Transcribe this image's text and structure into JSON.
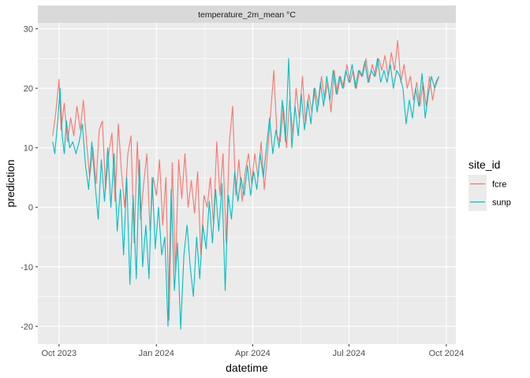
{
  "chart_data": {
    "type": "line",
    "facet_label": "temperature_2m_mean °C",
    "xlabel": "datetime",
    "ylabel": "prediction",
    "legend_title": "site_id",
    "legend_position": "right",
    "grid": true,
    "x_range": [
      "2023-09-11",
      "2024-10-10"
    ],
    "ylim": [
      -23,
      31
    ],
    "x_ticks": [
      {
        "date": "2023-10-01",
        "label": "Oct 2023"
      },
      {
        "date": "2024-01-01",
        "label": "Jan 2024"
      },
      {
        "date": "2024-04-01",
        "label": "Apr 2024"
      },
      {
        "date": "2024-07-01",
        "label": "Jul 2024"
      },
      {
        "date": "2024-10-01",
        "label": "Oct 2024"
      }
    ],
    "y_ticks": [
      -20,
      -10,
      0,
      10,
      20,
      30
    ],
    "series": [
      {
        "name": "fcre",
        "color": "#F8766D",
        "points": [
          [
            "2023-09-25",
            12
          ],
          [
            "2023-09-28",
            16
          ],
          [
            "2023-10-01",
            21.5
          ],
          [
            "2023-10-03",
            13
          ],
          [
            "2023-10-06",
            17.5
          ],
          [
            "2023-10-09",
            11
          ],
          [
            "2023-10-12",
            15
          ],
          [
            "2023-10-15",
            12
          ],
          [
            "2023-10-18",
            17
          ],
          [
            "2023-10-21",
            13
          ],
          [
            "2023-10-24",
            18
          ],
          [
            "2023-10-27",
            11
          ],
          [
            "2023-10-30",
            5
          ],
          [
            "2023-11-02",
            10
          ],
          [
            "2023-11-05",
            4
          ],
          [
            "2023-11-08",
            13
          ],
          [
            "2023-11-11",
            14.5
          ],
          [
            "2023-11-14",
            3
          ],
          [
            "2023-11-17",
            9
          ],
          [
            "2023-11-20",
            12.5
          ],
          [
            "2023-11-23",
            1
          ],
          [
            "2023-11-26",
            14
          ],
          [
            "2023-11-29",
            6
          ],
          [
            "2023-12-02",
            0
          ],
          [
            "2023-12-05",
            9
          ],
          [
            "2023-12-08",
            12
          ],
          [
            "2023-12-11",
            -6
          ],
          [
            "2023-12-14",
            11
          ],
          [
            "2023-12-17",
            -2
          ],
          [
            "2023-12-20",
            4
          ],
          [
            "2023-12-23",
            9
          ],
          [
            "2023-12-26",
            -4
          ],
          [
            "2023-12-29",
            5
          ],
          [
            "2024-01-01",
            2
          ],
          [
            "2024-01-04",
            8
          ],
          [
            "2024-01-07",
            -3
          ],
          [
            "2024-01-10",
            5
          ],
          [
            "2024-01-13",
            -19
          ],
          [
            "2024-01-16",
            7.5
          ],
          [
            "2024-01-19",
            -11
          ],
          [
            "2024-01-22",
            8
          ],
          [
            "2024-01-25",
            1.5
          ],
          [
            "2024-01-28",
            9
          ],
          [
            "2024-01-31",
            0
          ],
          [
            "2024-02-03",
            4.5
          ],
          [
            "2024-02-06",
            -1
          ],
          [
            "2024-02-09",
            6
          ],
          [
            "2024-02-12",
            -8
          ],
          [
            "2024-02-15",
            2
          ],
          [
            "2024-02-18",
            0
          ],
          [
            "2024-02-21",
            5
          ],
          [
            "2024-02-24",
            -3
          ],
          [
            "2024-02-27",
            11
          ],
          [
            "2024-03-01",
            2
          ],
          [
            "2024-03-04",
            9
          ],
          [
            "2024-03-07",
            -6
          ],
          [
            "2024-03-10",
            11
          ],
          [
            "2024-03-13",
            17
          ],
          [
            "2024-03-16",
            2
          ],
          [
            "2024-03-19",
            8
          ],
          [
            "2024-03-22",
            1
          ],
          [
            "2024-03-25",
            6
          ],
          [
            "2024-03-28",
            9
          ],
          [
            "2024-03-31",
            4
          ],
          [
            "2024-04-03",
            9
          ],
          [
            "2024-04-06",
            5
          ],
          [
            "2024-04-09",
            11
          ],
          [
            "2024-04-12",
            3
          ],
          [
            "2024-04-15",
            9
          ],
          [
            "2024-04-18",
            16
          ],
          [
            "2024-04-21",
            23
          ],
          [
            "2024-04-24",
            12
          ],
          [
            "2024-04-27",
            11
          ],
          [
            "2024-04-30",
            17
          ],
          [
            "2024-05-03",
            10
          ],
          [
            "2024-05-06",
            18
          ],
          [
            "2024-05-09",
            12
          ],
          [
            "2024-05-12",
            20
          ],
          [
            "2024-05-15",
            15
          ],
          [
            "2024-05-18",
            22
          ],
          [
            "2024-05-21",
            14
          ],
          [
            "2024-05-24",
            19
          ],
          [
            "2024-05-27",
            16
          ],
          [
            "2024-05-30",
            20
          ],
          [
            "2024-06-02",
            17
          ],
          [
            "2024-06-05",
            22
          ],
          [
            "2024-06-08",
            18
          ],
          [
            "2024-06-11",
            21
          ],
          [
            "2024-06-14",
            16
          ],
          [
            "2024-06-17",
            23
          ],
          [
            "2024-06-20",
            19
          ],
          [
            "2024-06-23",
            22
          ],
          [
            "2024-06-26",
            20
          ],
          [
            "2024-06-29",
            24
          ],
          [
            "2024-07-02",
            21
          ],
          [
            "2024-07-05",
            23
          ],
          [
            "2024-07-08",
            20
          ],
          [
            "2024-07-11",
            23
          ],
          [
            "2024-07-14",
            22
          ],
          [
            "2024-07-17",
            25
          ],
          [
            "2024-07-20",
            21
          ],
          [
            "2024-07-23",
            24
          ],
          [
            "2024-07-26",
            22
          ],
          [
            "2024-07-29",
            25
          ],
          [
            "2024-08-01",
            23
          ],
          [
            "2024-08-04",
            25.5
          ],
          [
            "2024-08-07",
            22
          ],
          [
            "2024-08-10",
            26
          ],
          [
            "2024-08-13",
            23
          ],
          [
            "2024-08-16",
            28
          ],
          [
            "2024-08-19",
            21
          ],
          [
            "2024-08-22",
            24
          ],
          [
            "2024-08-25",
            20
          ],
          [
            "2024-08-28",
            22
          ],
          [
            "2024-08-31",
            18
          ],
          [
            "2024-09-03",
            21
          ],
          [
            "2024-09-06",
            17
          ],
          [
            "2024-09-09",
            21
          ],
          [
            "2024-09-12",
            17
          ],
          [
            "2024-09-15",
            22
          ],
          [
            "2024-09-18",
            18
          ],
          [
            "2024-09-21",
            21
          ],
          [
            "2024-09-24",
            22
          ]
        ]
      },
      {
        "name": "sunp",
        "color": "#00BFC4",
        "points": [
          [
            "2023-09-25",
            11
          ],
          [
            "2023-09-27",
            9
          ],
          [
            "2023-09-30",
            15
          ],
          [
            "2023-10-02",
            20
          ],
          [
            "2023-10-04",
            12
          ],
          [
            "2023-10-06",
            9
          ],
          [
            "2023-10-08",
            14.5
          ],
          [
            "2023-10-11",
            10
          ],
          [
            "2023-10-14",
            11
          ],
          [
            "2023-10-17",
            9
          ],
          [
            "2023-10-20",
            11
          ],
          [
            "2023-10-23",
            14
          ],
          [
            "2023-10-26",
            7
          ],
          [
            "2023-10-29",
            3
          ],
          [
            "2023-11-01",
            11
          ],
          [
            "2023-11-04",
            4
          ],
          [
            "2023-11-07",
            -2
          ],
          [
            "2023-11-10",
            8
          ],
          [
            "2023-11-13",
            1
          ],
          [
            "2023-11-16",
            10
          ],
          [
            "2023-11-19",
            0
          ],
          [
            "2023-11-22",
            9
          ],
          [
            "2023-11-25",
            -4
          ],
          [
            "2023-11-28",
            3
          ],
          [
            "2023-12-01",
            -8
          ],
          [
            "2023-12-04",
            5
          ],
          [
            "2023-12-07",
            -13
          ],
          [
            "2023-12-10",
            2
          ],
          [
            "2023-12-13",
            -12
          ],
          [
            "2023-12-16",
            8
          ],
          [
            "2023-12-19",
            -10
          ],
          [
            "2023-12-22",
            -3
          ],
          [
            "2023-12-25",
            -12
          ],
          [
            "2023-12-28",
            5
          ],
          [
            "2023-12-31",
            -7
          ],
          [
            "2024-01-03",
            0
          ],
          [
            "2024-01-06",
            -8
          ],
          [
            "2024-01-09",
            -5
          ],
          [
            "2024-01-12",
            -20
          ],
          [
            "2024-01-15",
            3
          ],
          [
            "2024-01-18",
            -14
          ],
          [
            "2024-01-21",
            -6
          ],
          [
            "2024-01-24",
            -20.5
          ],
          [
            "2024-01-27",
            -8
          ],
          [
            "2024-01-30",
            -3
          ],
          [
            "2024-02-02",
            -10
          ],
          [
            "2024-02-05",
            -15
          ],
          [
            "2024-02-08",
            -5
          ],
          [
            "2024-02-11",
            -12
          ],
          [
            "2024-02-14",
            -3
          ],
          [
            "2024-02-17",
            -7
          ],
          [
            "2024-02-20",
            1
          ],
          [
            "2024-02-23",
            -6
          ],
          [
            "2024-02-26",
            3
          ],
          [
            "2024-02-29",
            -4
          ],
          [
            "2024-03-03",
            4
          ],
          [
            "2024-03-06",
            -14
          ],
          [
            "2024-03-09",
            2
          ],
          [
            "2024-03-12",
            -2
          ],
          [
            "2024-03-15",
            6
          ],
          [
            "2024-03-18",
            1
          ],
          [
            "2024-03-21",
            5
          ],
          [
            "2024-03-24",
            2
          ],
          [
            "2024-03-27",
            7
          ],
          [
            "2024-03-30",
            2
          ],
          [
            "2024-04-02",
            6
          ],
          [
            "2024-04-05",
            3
          ],
          [
            "2024-04-08",
            9
          ],
          [
            "2024-04-11",
            5
          ],
          [
            "2024-04-14",
            10
          ],
          [
            "2024-04-17",
            15
          ],
          [
            "2024-04-20",
            9
          ],
          [
            "2024-04-23",
            13
          ],
          [
            "2024-04-26",
            10
          ],
          [
            "2024-04-29",
            18
          ],
          [
            "2024-05-02",
            11
          ],
          [
            "2024-05-05",
            25
          ],
          [
            "2024-05-08",
            10
          ],
          [
            "2024-05-11",
            17
          ],
          [
            "2024-05-14",
            12
          ],
          [
            "2024-05-17",
            19
          ],
          [
            "2024-05-20",
            13
          ],
          [
            "2024-05-23",
            18
          ],
          [
            "2024-05-26",
            14
          ],
          [
            "2024-05-29",
            20
          ],
          [
            "2024-06-01",
            16
          ],
          [
            "2024-06-04",
            21
          ],
          [
            "2024-06-07",
            17
          ],
          [
            "2024-06-10",
            22
          ],
          [
            "2024-06-13",
            18
          ],
          [
            "2024-06-16",
            23
          ],
          [
            "2024-06-19",
            19
          ],
          [
            "2024-06-22",
            22
          ],
          [
            "2024-06-25",
            20
          ],
          [
            "2024-06-28",
            23
          ],
          [
            "2024-07-01",
            21
          ],
          [
            "2024-07-04",
            24
          ],
          [
            "2024-07-07",
            20
          ],
          [
            "2024-07-10",
            23
          ],
          [
            "2024-07-13",
            22
          ],
          [
            "2024-07-16",
            24.5
          ],
          [
            "2024-07-19",
            21
          ],
          [
            "2024-07-22",
            23
          ],
          [
            "2024-07-25",
            22
          ],
          [
            "2024-07-28",
            25
          ],
          [
            "2024-07-31",
            21
          ],
          [
            "2024-08-03",
            23
          ],
          [
            "2024-08-06",
            21
          ],
          [
            "2024-08-09",
            24
          ],
          [
            "2024-08-12",
            20
          ],
          [
            "2024-08-15",
            23
          ],
          [
            "2024-08-18",
            22
          ],
          [
            "2024-08-21",
            20
          ],
          [
            "2024-08-24",
            14
          ],
          [
            "2024-08-27",
            18
          ],
          [
            "2024-08-30",
            15
          ],
          [
            "2024-09-02",
            20
          ],
          [
            "2024-09-05",
            17
          ],
          [
            "2024-09-08",
            22.5
          ],
          [
            "2024-09-11",
            15
          ],
          [
            "2024-09-14",
            19
          ],
          [
            "2024-09-17",
            22
          ],
          [
            "2024-09-20",
            20
          ],
          [
            "2024-09-24",
            22
          ]
        ]
      }
    ]
  }
}
